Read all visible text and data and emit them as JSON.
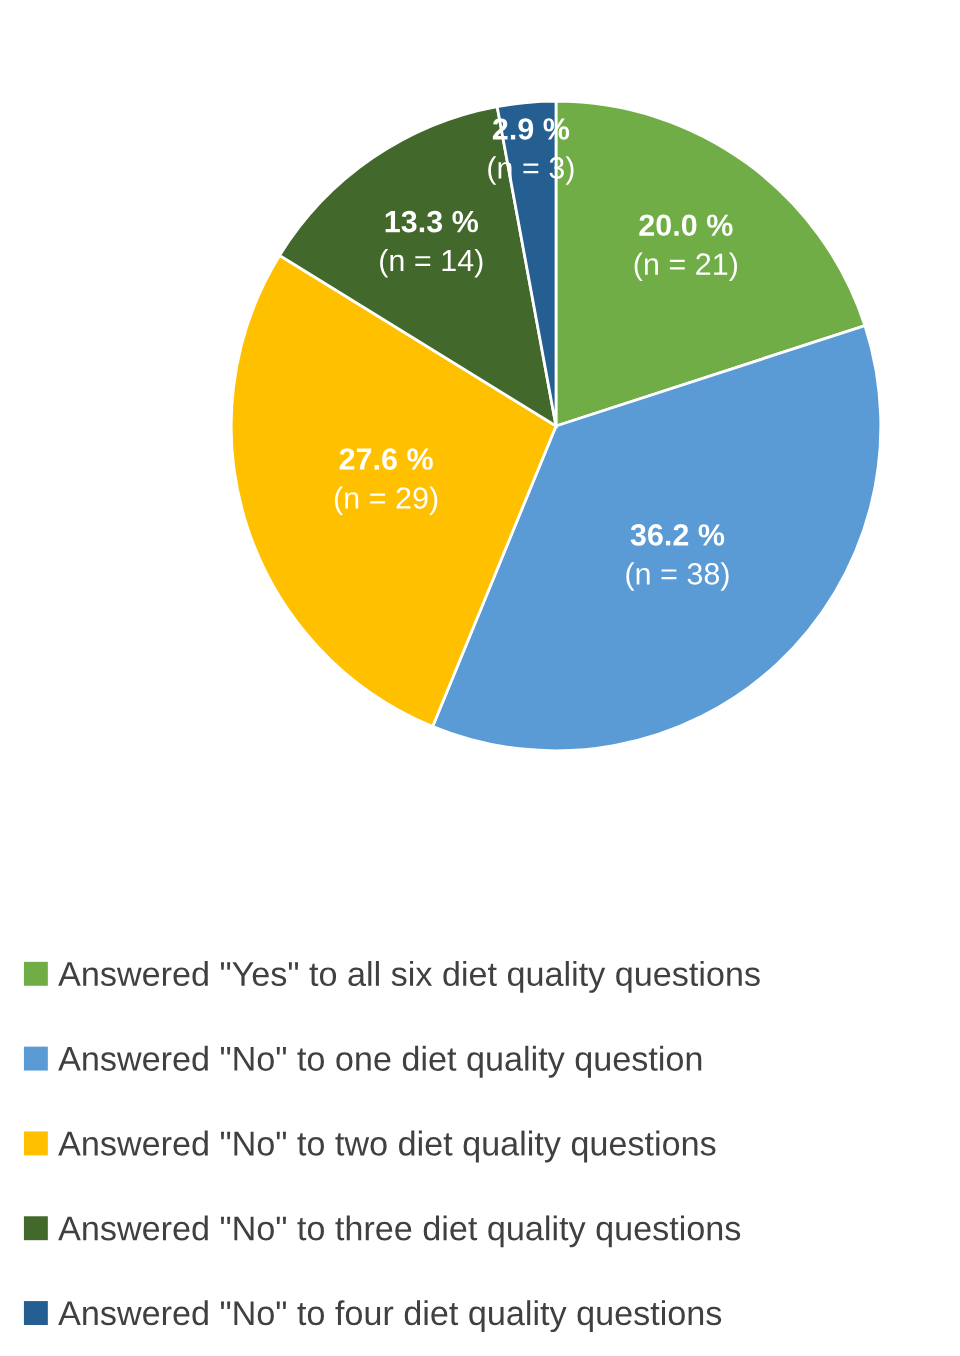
{
  "chart_data": {
    "type": "pie",
    "categories": [
      "Answered \"Yes\" to all six diet quality questions",
      "Answered \"No\" to one diet quality question",
      "Answered \"No\" to two diet quality questions",
      "Answered \"No\" to three diet quality questions",
      "Answered \"No\" to four diet quality questions"
    ],
    "values": [
      20.0,
      36.2,
      27.6,
      13.3,
      2.9
    ],
    "colors": [
      "#70ad47",
      "#5b9bd5",
      "#ffc000",
      "#43682b",
      "#255e91"
    ],
    "value_labels": [
      "20.0 %\n(n = 21)",
      "36.2 %\n(n = 38)",
      "27.6 %\n(n = 29)",
      "13.3 %\n(n = 14)",
      "2.9 %\n(n = 3)"
    ],
    "legend": "bottom"
  }
}
